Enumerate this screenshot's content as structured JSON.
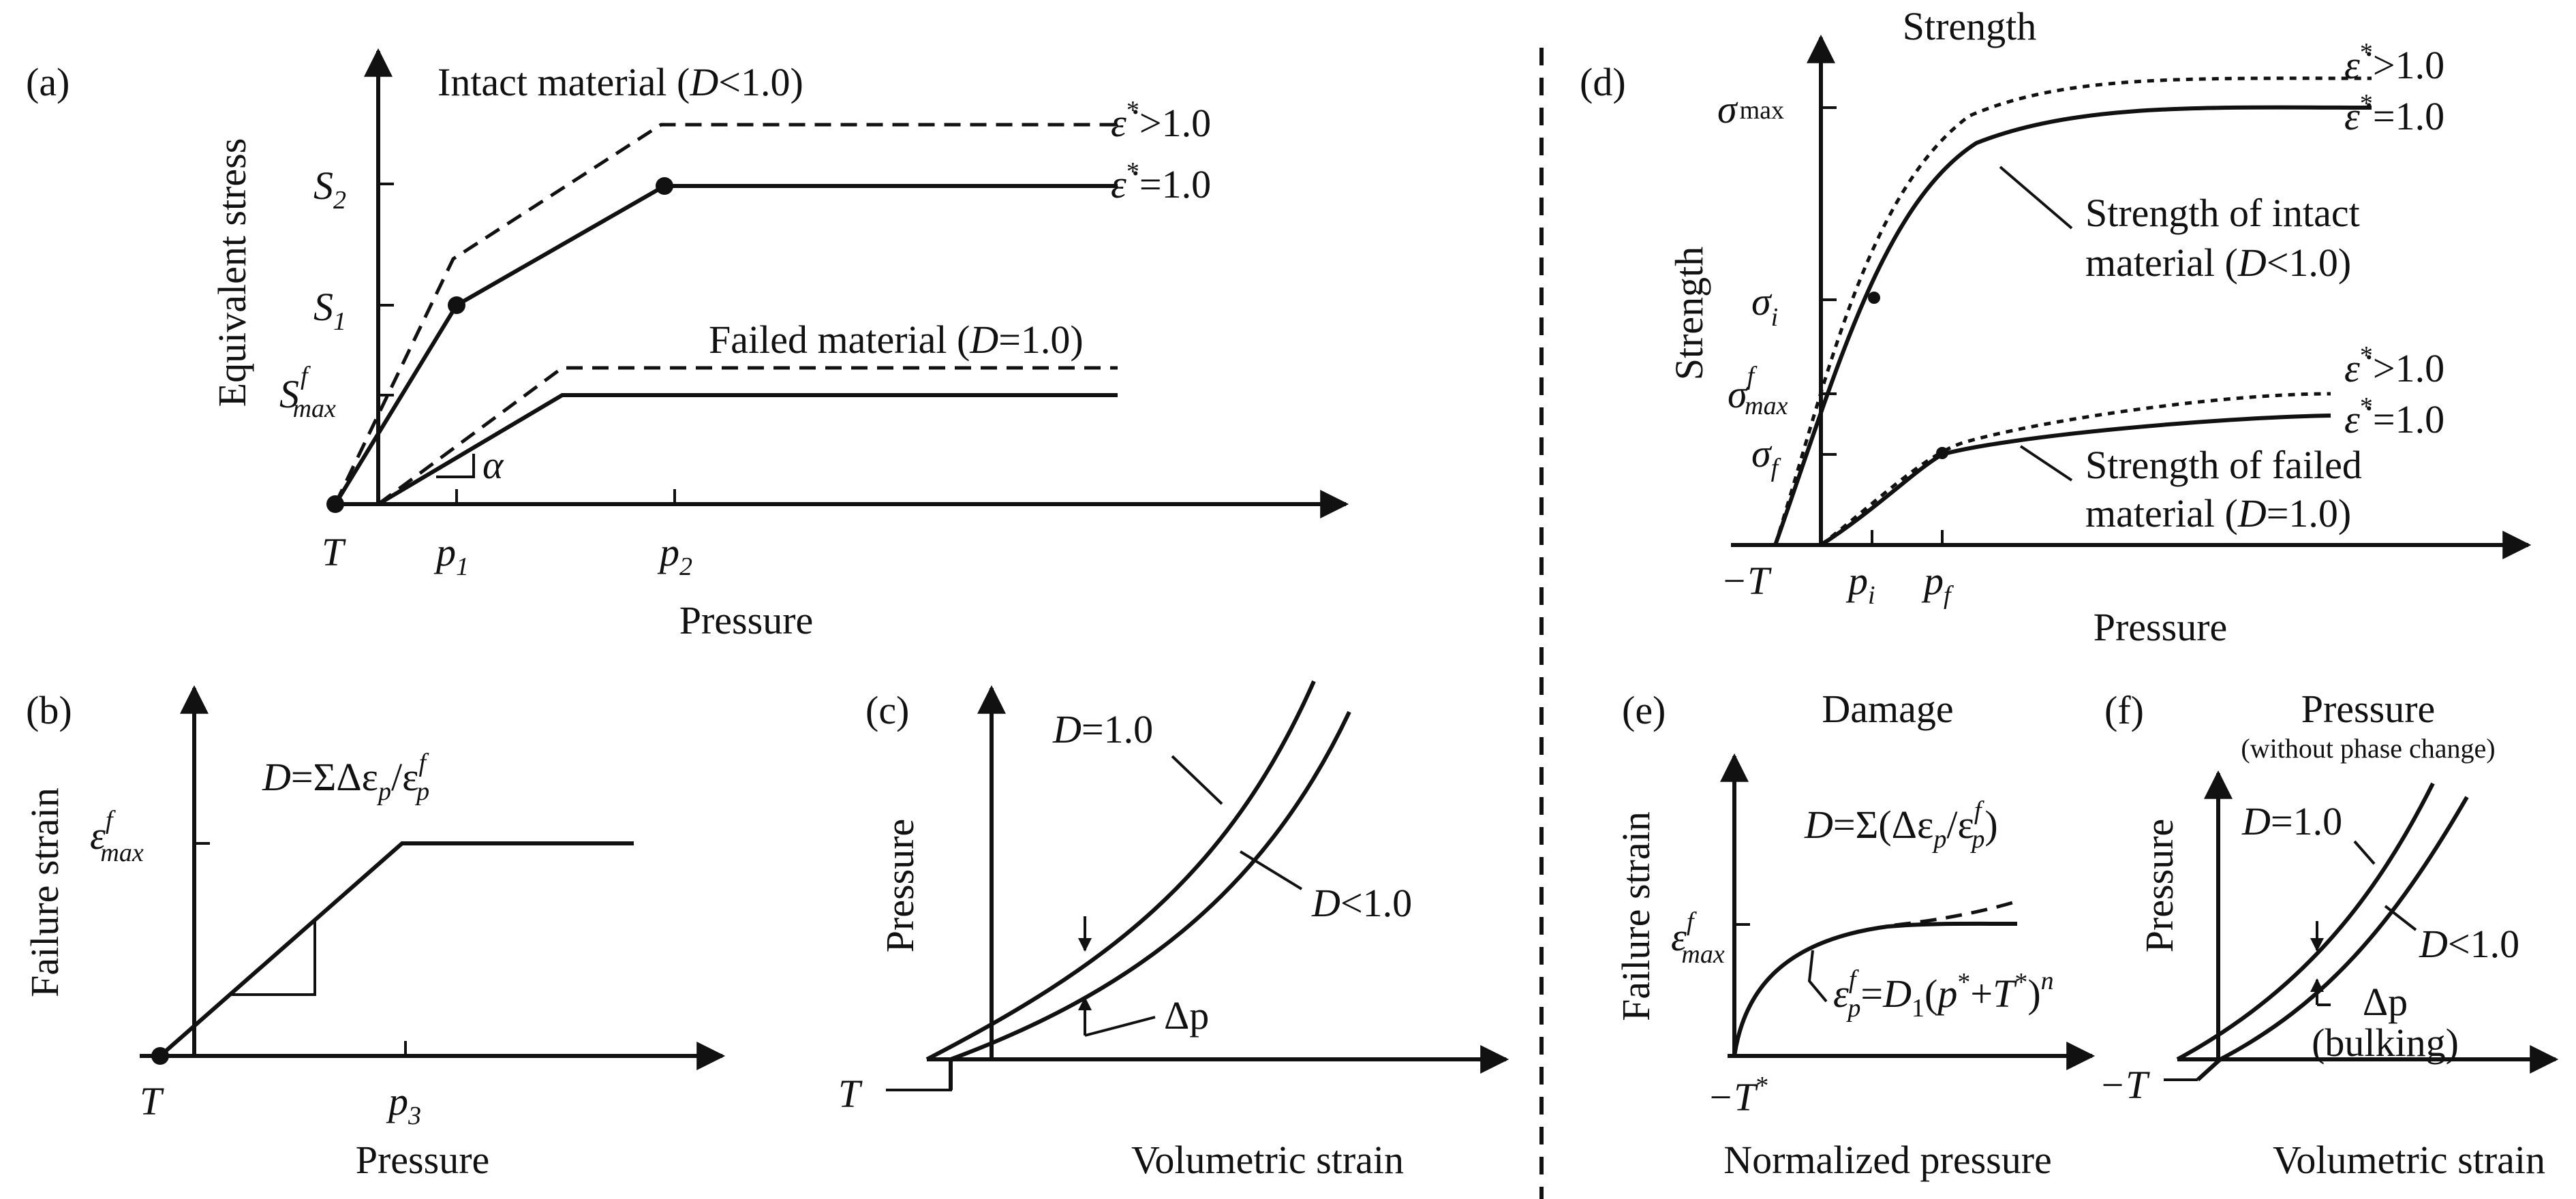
{
  "panels": {
    "a": {
      "label": "(a)",
      "ylabel": "Equivalent stress",
      "xlabel": "Pressure",
      "y_ticks": [
        "S",
        "S",
        "S"
      ],
      "y_tick_subs": [
        "2",
        "1",
        "max"
      ],
      "y_tick_sup": "f",
      "x_tick_T": "T",
      "x_ticks": [
        "p",
        "p"
      ],
      "x_tick_subs": [
        "1",
        "2"
      ],
      "slope_label": "α",
      "intact_label": "Intact material (",
      "intact_var": "D",
      "intact_cond": "<1.0)",
      "failed_label": "Failed material (",
      "failed_var": "D",
      "failed_cond": "=1.0)",
      "rate_high": ">1.0",
      "rate_unit": "=1.0",
      "rate_symbol": "ε̇",
      "rate_star": "*"
    },
    "b": {
      "label": "(b)",
      "ylabel": "Failure strain",
      "xlabel": "Pressure",
      "x_tick_T": "T",
      "x_tick_p": "p",
      "x_tick_p_sub": "3",
      "y_tick": "ε",
      "y_tick_sub": "max",
      "y_tick_sup": "f",
      "eq_lhs": "D",
      "eq_mid": "=ΣΔε",
      "eq_sub1": "p",
      "eq_slash": "/ε",
      "eq_sub2": "p",
      "eq_sup": "f"
    },
    "c": {
      "label": "(c)",
      "ylabel": "Pressure",
      "xlabel": "Volumetric strain",
      "x_tick_T": "T",
      "curve1_var": "D",
      "curve1_cond": "=1.0",
      "curve2_var": "D",
      "curve2_cond": "<1.0",
      "delta": "Δp"
    },
    "d": {
      "label": "(d)",
      "title": "Strength",
      "ylabel": "Strength",
      "xlabel": "Pressure",
      "y_ticks": [
        "σ",
        "σ",
        "σ",
        "σ"
      ],
      "y_tick_subs": [
        "max",
        "i",
        "max",
        "f"
      ],
      "y_tick_sup": "f",
      "x_tick_T": "−T",
      "x_ticks": [
        "p",
        "p"
      ],
      "x_tick_subs": [
        "i",
        "f"
      ],
      "intact_line1": "Strength of intact",
      "intact_line2a": "material (",
      "intact_var": "D",
      "intact_cond": "<1.0)",
      "failed_line1": "Strength of failed",
      "failed_line2a": "material (",
      "failed_var": "D",
      "failed_cond": "=1.0)",
      "rate_high": ">1.0",
      "rate_unit": "=1.0",
      "rate_symbol": "ε̇",
      "rate_star": "*"
    },
    "e": {
      "label": "(e)",
      "title": "Damage",
      "ylabel": "Failure strain",
      "xlabel": "Normalized pressure",
      "x_tick_T": "−T",
      "x_tick_T_sup": "*",
      "y_tick": "ε",
      "y_tick_sub": "max",
      "y_tick_sup": "f",
      "eq_lhs": "D",
      "eq_mid": "=Σ(Δε",
      "eq_sub1": "p",
      "eq_slash": "/ε",
      "eq_sub2": "p",
      "eq_sup": "f",
      "eq_close": ")",
      "fit_eps": "ε",
      "fit_sub": "p",
      "fit_sup": "f",
      "fit_mid": "=",
      "fit_D": "D",
      "fit_D_sub": "1",
      "fit_paren": "(",
      "fit_p": "p",
      "fit_plus": "+",
      "fit_T": "T",
      "fit_star": "*",
      "fit_close": ")",
      "fit_n": "n"
    },
    "f": {
      "label": "(f)",
      "title": "Pressure",
      "subtitle": "(without phase change)",
      "ylabel": "Pressure",
      "xlabel": "Volumetric strain",
      "x_tick_T": "−T",
      "curve1_var": "D",
      "curve1_cond": "=1.0",
      "curve2_var": "D",
      "curve2_cond": "<1.0",
      "delta": "Δp",
      "bulking": "(bulking)"
    }
  }
}
